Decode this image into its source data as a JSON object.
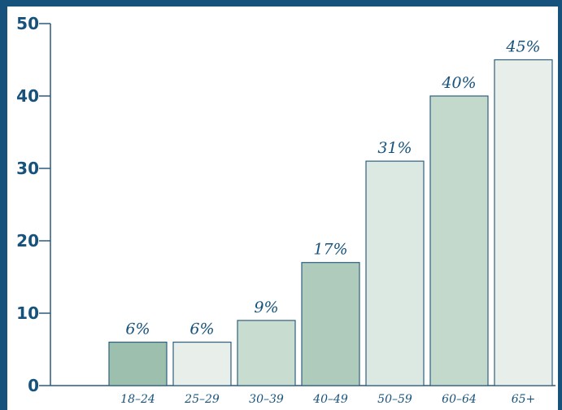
{
  "colors": {
    "frame": "#16527c",
    "text": "#16527c",
    "axis": "#2a5a7c",
    "bar_stroke": "#2f5f80",
    "bar_fills": [
      "#9cc0ad",
      "#e8efea",
      "#c9dcd0",
      "#afcbbb",
      "#dce9e2",
      "#c2d9cb",
      "#e8efea"
    ]
  },
  "chart_data": {
    "type": "bar",
    "categories": [
      "18–24",
      "25–29",
      "30–39",
      "40–49",
      "50–59",
      "60–64",
      "65+"
    ],
    "values": [
      6,
      6,
      9,
      17,
      31,
      40,
      45
    ],
    "value_labels": [
      "6%",
      "6%",
      "9%",
      "17%",
      "31%",
      "40%",
      "45%"
    ],
    "ylim": [
      0,
      50
    ],
    "yticks": [
      0,
      10,
      20,
      30,
      40,
      50
    ],
    "title": "",
    "xlabel": "",
    "ylabel": "",
    "grid": false,
    "legend": "none"
  }
}
